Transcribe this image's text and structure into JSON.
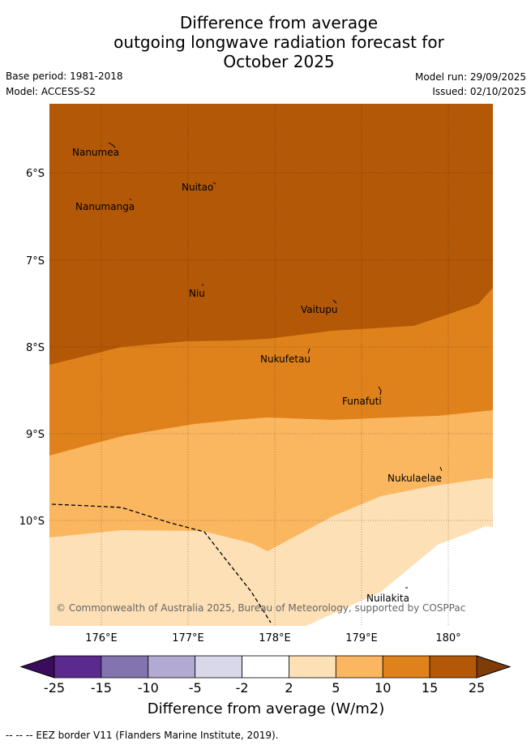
{
  "title": {
    "line1": "Difference from average",
    "line2": "outgoing longwave radiation forecast for",
    "line3": "October 2025"
  },
  "info": {
    "base_period": "Base period: 1981-2018",
    "model": "Model: ACCESS-S2",
    "model_run": "Model run: 29/09/2025",
    "issued": "Issued: 02/10/2025"
  },
  "map": {
    "lat_labels": [
      "6°S",
      "7°S",
      "8°S",
      "9°S",
      "10°S"
    ],
    "lon_labels": [
      "176°E",
      "177°E",
      "178°E",
      "179°E",
      "180°"
    ],
    "places": [
      {
        "name": "Nanumea"
      },
      {
        "name": "Nuitao"
      },
      {
        "name": "Nanumanga"
      },
      {
        "name": "Niu"
      },
      {
        "name": "Vaitupu"
      },
      {
        "name": "Nukufetau"
      },
      {
        "name": "Funafuti"
      },
      {
        "name": "Nukulaelae"
      },
      {
        "name": "Nuilakita"
      }
    ],
    "copyright": "© Commonwealth of Australia 2025, Bureau of Meteorology, supported by COSPPac"
  },
  "colorbar": {
    "ticks": [
      "-25",
      "-15",
      "-10",
      "-5",
      "-2",
      "2",
      "5",
      "10",
      "15",
      "25"
    ],
    "colors": [
      "#5b2a8e",
      "#8373ae",
      "#b2aad2",
      "#d8d8ea",
      "#ffffff",
      "#fde0b6",
      "#fbb760",
      "#e0821c",
      "#b35806"
    ],
    "under_color": "#3b0c5c",
    "over_color": "#7f3b08",
    "label": "Difference from average (W/m2)"
  },
  "footnote": "--  --  -- EEZ border V11 (Flanders Marine Institute, 2019)."
}
